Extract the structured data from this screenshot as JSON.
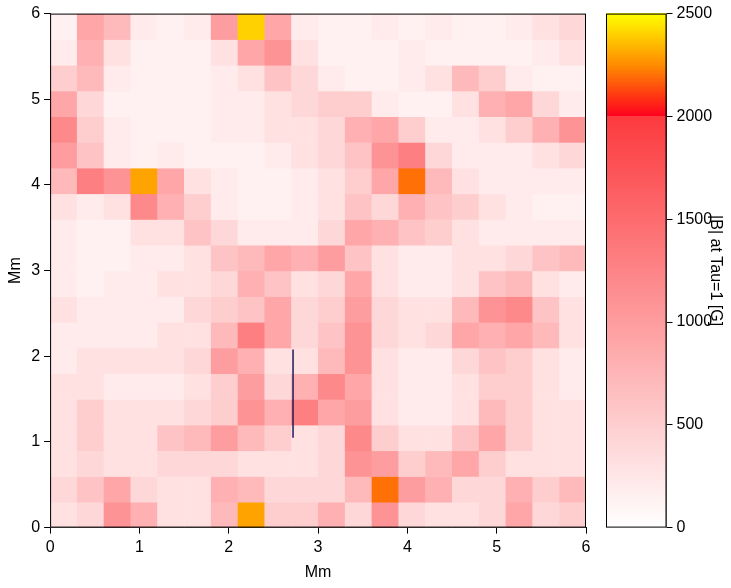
{
  "chart_data": {
    "type": "heatmap",
    "x_label": "Mm",
    "y_label": "Mm",
    "xlim": [
      0,
      6
    ],
    "ylim": [
      0,
      6
    ],
    "xticks": [
      0,
      1,
      2,
      3,
      4,
      5,
      6
    ],
    "yticks": [
      0,
      1,
      2,
      3,
      4,
      5,
      6
    ],
    "grid": false,
    "xbins": [
      0,
      0.3,
      0.6,
      0.9,
      1.2,
      1.5,
      1.8,
      2.1,
      2.4,
      2.7,
      3,
      3.3,
      3.6,
      3.9,
      4.2,
      4.5,
      4.8,
      5.1,
      5.4,
      5.7,
      6
    ],
    "ybins": [
      0,
      0.3,
      0.6,
      0.9,
      1.2,
      1.5,
      1.8,
      2.1,
      2.4,
      2.7,
      3,
      3.3,
      3.6,
      3.9,
      4.2,
      4.5,
      4.8,
      5.1,
      5.4,
      5.7,
      6
    ],
    "values": [
      [
        300,
        400,
        1100,
        800,
        300,
        300,
        700,
        2300,
        500,
        500,
        800,
        400,
        1100,
        400,
        300,
        300,
        400,
        900,
        400,
        500
      ],
      [
        400,
        600,
        900,
        400,
        300,
        300,
        800,
        700,
        400,
        400,
        400,
        700,
        2200,
        1000,
        800,
        400,
        400,
        800,
        500,
        700
      ],
      [
        300,
        400,
        300,
        300,
        400,
        400,
        400,
        300,
        300,
        300,
        400,
        1100,
        1000,
        500,
        700,
        900,
        500,
        300,
        300,
        300
      ],
      [
        300,
        500,
        300,
        300,
        600,
        700,
        1000,
        700,
        500,
        300,
        400,
        1200,
        500,
        300,
        300,
        600,
        900,
        500,
        300,
        300
      ],
      [
        300,
        500,
        300,
        300,
        300,
        400,
        500,
        1100,
        800,
        1300,
        900,
        1000,
        300,
        200,
        200,
        300,
        700,
        500,
        300,
        300
      ],
      [
        300,
        300,
        200,
        200,
        200,
        300,
        500,
        1000,
        400,
        800,
        1200,
        900,
        300,
        200,
        200,
        300,
        500,
        500,
        300,
        200
      ],
      [
        200,
        300,
        300,
        300,
        300,
        400,
        1000,
        800,
        300,
        300,
        700,
        1100,
        300,
        200,
        200,
        400,
        600,
        500,
        300,
        200
      ],
      [
        200,
        200,
        200,
        200,
        300,
        300,
        700,
        1300,
        900,
        400,
        600,
        1100,
        400,
        300,
        400,
        900,
        800,
        900,
        700,
        300
      ],
      [
        300,
        200,
        200,
        200,
        200,
        400,
        500,
        600,
        900,
        400,
        500,
        1000,
        400,
        300,
        300,
        700,
        1100,
        1200,
        600,
        300
      ],
      [
        200,
        150,
        200,
        200,
        300,
        300,
        400,
        800,
        600,
        300,
        400,
        900,
        300,
        200,
        200,
        300,
        600,
        700,
        300,
        200
      ],
      [
        200,
        150,
        150,
        200,
        200,
        300,
        600,
        700,
        900,
        800,
        1000,
        600,
        300,
        200,
        200,
        300,
        300,
        400,
        600,
        700
      ],
      [
        200,
        150,
        150,
        300,
        300,
        600,
        400,
        200,
        200,
        200,
        400,
        900,
        800,
        600,
        500,
        300,
        200,
        200,
        200,
        200
      ],
      [
        300,
        200,
        300,
        1200,
        800,
        500,
        200,
        150,
        150,
        200,
        300,
        600,
        400,
        800,
        600,
        500,
        300,
        200,
        150,
        150
      ],
      [
        700,
        1300,
        1100,
        2300,
        900,
        300,
        200,
        150,
        150,
        200,
        300,
        500,
        900,
        2200,
        700,
        300,
        200,
        200,
        200,
        200
      ],
      [
        1000,
        600,
        200,
        150,
        200,
        150,
        150,
        150,
        200,
        300,
        400,
        600,
        1100,
        1300,
        400,
        200,
        200,
        200,
        300,
        400
      ],
      [
        1200,
        500,
        200,
        150,
        150,
        150,
        200,
        200,
        300,
        300,
        400,
        800,
        900,
        500,
        200,
        200,
        300,
        500,
        800,
        1100
      ],
      [
        900,
        400,
        150,
        150,
        150,
        150,
        200,
        200,
        300,
        400,
        500,
        500,
        200,
        150,
        150,
        300,
        800,
        900,
        400,
        200
      ],
      [
        500,
        700,
        200,
        150,
        150,
        150,
        200,
        300,
        600,
        400,
        200,
        150,
        150,
        200,
        300,
        700,
        500,
        200,
        150,
        150
      ],
      [
        200,
        800,
        300,
        150,
        150,
        150,
        300,
        900,
        1100,
        300,
        150,
        150,
        150,
        200,
        150,
        150,
        150,
        150,
        200,
        300
      ],
      [
        150,
        900,
        700,
        200,
        150,
        200,
        1000,
        2400,
        900,
        200,
        150,
        150,
        200,
        150,
        200,
        150,
        150,
        200,
        300,
        400
      ]
    ],
    "colorbar": {
      "label": "|B| at Tau=1 [G]",
      "range": [
        0,
        2500
      ],
      "ticks": [
        0,
        500,
        1000,
        1500,
        2000,
        2500
      ]
    },
    "annotations": [
      {
        "type": "line",
        "x": [
          2.72,
          2.72
        ],
        "y": [
          1.05,
          2.08
        ],
        "color": "#1c1c5c"
      }
    ]
  }
}
